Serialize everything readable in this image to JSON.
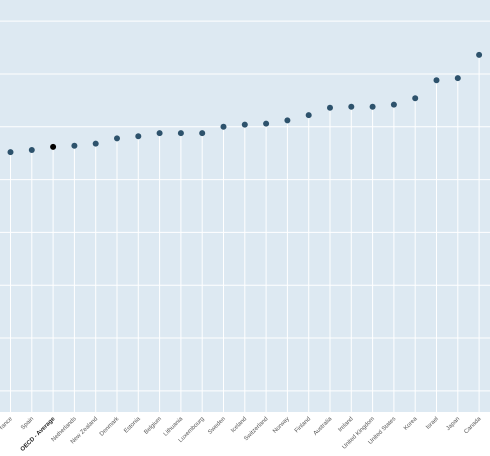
{
  "chart_data": {
    "type": "scatter",
    "title": "",
    "xlabel": "",
    "ylabel": "",
    "categories": [
      "France",
      "Spain",
      "OECD - Average",
      "Netherlands",
      "New Zealand",
      "Denmark",
      "Estonia",
      "Belgium",
      "Lithuania",
      "Luxembourg",
      "Sweden",
      "Iceland",
      "Switzerland",
      "Norway",
      "Finland",
      "Australia",
      "Ireland",
      "United Kingdom",
      "United States",
      "Korea",
      "Israel",
      "Japan",
      "Canada"
    ],
    "values": [
      38,
      39,
      40.5,
      41,
      42,
      44.5,
      45.5,
      47,
      47,
      47,
      50,
      51,
      51.5,
      53,
      55.5,
      59,
      59.5,
      59.5,
      60.5,
      63.5,
      72,
      73,
      84
    ],
    "highlight_category": "OECD - Average",
    "ylim": [
      -85,
      110
    ],
    "grid": true,
    "colors": {
      "background": "#dde9f2",
      "grid": "#ffffff",
      "point": "#2d526c",
      "highlight_point": "#000000"
    }
  }
}
